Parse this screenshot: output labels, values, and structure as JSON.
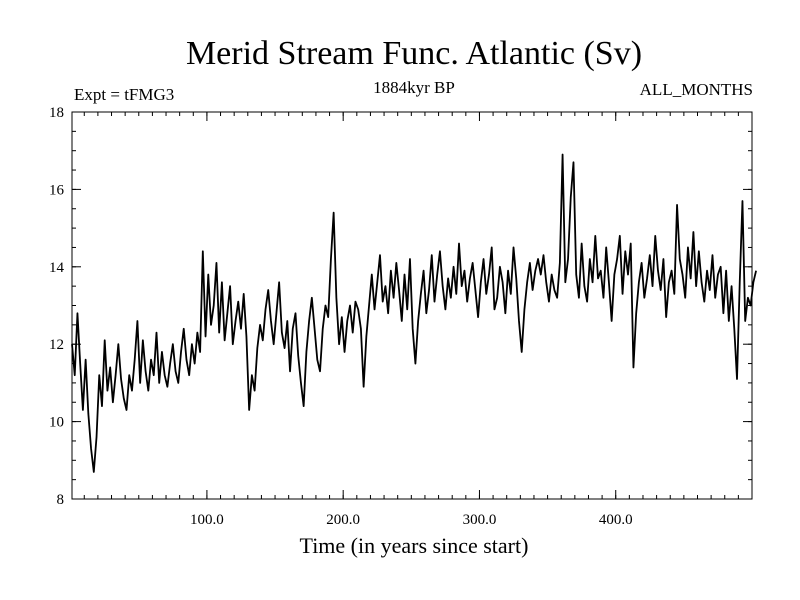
{
  "chart_data": {
    "type": "line",
    "title": "Merid Stream Func. Atlantic (Sv)",
    "subtitle": "1884kyr BP",
    "left_label": "Expt = tFMG3",
    "right_label": "ALL_MONTHS",
    "xlabel": "Time (in years since start)",
    "ylabel": "",
    "xlim": [
      1,
      500
    ],
    "ylim": [
      8,
      18
    ],
    "x_ticks": [
      100,
      200,
      300,
      400
    ],
    "x_tick_labels": [
      "100.0",
      "200.0",
      "300.0",
      "400.0"
    ],
    "y_ticks": [
      8,
      10,
      12,
      14,
      16,
      18
    ],
    "y_tick_labels": [
      "8",
      "10",
      "12",
      "14",
      "16",
      "18"
    ],
    "grid": false,
    "line_color": "#000000",
    "series": [
      {
        "name": "Merid Stream Func. Atlantic",
        "x_start": 1,
        "x_step": 2,
        "values": [
          12.0,
          11.2,
          12.8,
          11.5,
          10.3,
          11.6,
          10.2,
          9.3,
          8.7,
          9.6,
          11.2,
          10.4,
          12.1,
          10.8,
          11.4,
          10.5,
          11.2,
          12.0,
          11.1,
          10.6,
          10.3,
          11.2,
          10.8,
          11.6,
          12.6,
          11.0,
          12.1,
          11.3,
          10.8,
          11.6,
          11.2,
          12.3,
          11.0,
          11.8,
          11.2,
          10.9,
          11.5,
          12.0,
          11.3,
          11.0,
          11.8,
          12.4,
          11.6,
          11.2,
          12.0,
          11.5,
          12.3,
          11.8,
          14.4,
          12.2,
          13.8,
          12.5,
          13.0,
          14.1,
          12.3,
          13.6,
          12.1,
          12.8,
          13.5,
          12.0,
          12.6,
          13.1,
          12.4,
          13.3,
          12.2,
          10.3,
          11.2,
          10.8,
          11.9,
          12.5,
          12.1,
          12.9,
          13.4,
          12.6,
          12.0,
          12.8,
          13.6,
          12.3,
          11.9,
          12.6,
          11.3,
          12.4,
          12.8,
          11.7,
          11.0,
          10.4,
          11.8,
          12.6,
          13.2,
          12.4,
          11.6,
          11.3,
          12.4,
          13.0,
          12.7,
          14.2,
          15.4,
          13.2,
          12.0,
          12.7,
          11.8,
          12.6,
          13.0,
          12.3,
          13.1,
          12.9,
          12.4,
          10.9,
          12.2,
          13.0,
          13.8,
          12.9,
          13.6,
          14.3,
          13.1,
          13.5,
          12.8,
          13.9,
          13.2,
          14.1,
          13.4,
          12.6,
          13.8,
          12.9,
          14.2,
          12.4,
          11.5,
          12.6,
          13.3,
          13.9,
          12.8,
          13.4,
          14.3,
          13.1,
          13.8,
          14.4,
          13.5,
          12.9,
          13.7,
          13.2,
          14.0,
          13.3,
          14.6,
          13.5,
          13.9,
          13.1,
          13.7,
          14.1,
          13.4,
          12.7,
          13.6,
          14.2,
          13.3,
          13.8,
          14.5,
          12.9,
          13.2,
          14.0,
          13.6,
          12.8,
          13.9,
          13.3,
          14.5,
          13.7,
          12.6,
          11.8,
          12.9,
          13.6,
          14.1,
          13.4,
          13.9,
          14.2,
          13.8,
          14.3,
          13.6,
          13.1,
          13.8,
          13.4,
          13.2,
          14.1,
          16.9,
          13.6,
          14.2,
          15.8,
          16.7,
          13.8,
          13.2,
          14.6,
          13.5,
          13.1,
          14.2,
          13.6,
          14.8,
          13.7,
          13.9,
          13.2,
          14.5,
          13.6,
          12.6,
          13.8,
          14.2,
          14.8,
          13.3,
          14.4,
          13.8,
          14.6,
          11.4,
          12.8,
          13.6,
          14.1,
          13.2,
          13.7,
          14.3,
          13.5,
          14.8,
          13.9,
          13.4,
          14.2,
          12.7,
          13.6,
          13.9,
          13.3,
          15.6,
          14.2,
          13.8,
          13.2,
          14.5,
          13.7,
          14.9,
          13.5,
          14.4,
          13.6,
          13.1,
          13.9,
          13.4,
          14.3,
          13.2,
          13.8,
          14.0,
          12.8,
          13.9,
          12.6,
          13.5,
          12.4,
          11.1,
          13.6,
          15.7,
          12.6,
          13.2,
          13.0,
          13.6,
          13.9
        ]
      }
    ]
  }
}
